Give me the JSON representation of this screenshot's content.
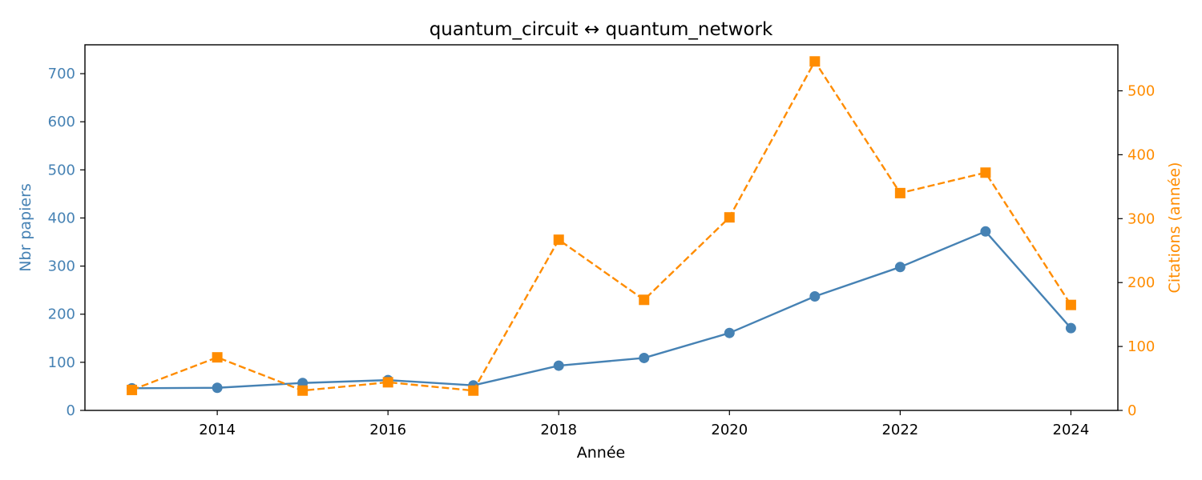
{
  "chart_data": {
    "type": "line",
    "title": "quantum_circuit  ↔  quantum_network",
    "xlabel": "Année",
    "ylabel_left": "Nbr papiers",
    "ylabel_right": "Citations (année)",
    "x": [
      2013,
      2014,
      2015,
      2016,
      2017,
      2018,
      2019,
      2020,
      2021,
      2022,
      2023,
      2024
    ],
    "xlim": [
      2012.45,
      2024.55
    ],
    "xticks": [
      2014,
      2016,
      2018,
      2020,
      2022,
      2024
    ],
    "ylim_left": [
      0,
      760
    ],
    "yticks_left": [
      0,
      100,
      200,
      300,
      400,
      500,
      600,
      700
    ],
    "ylim_right": [
      0,
      572
    ],
    "yticks_right": [
      0,
      100,
      200,
      300,
      400,
      500
    ],
    "grid": false,
    "legend": "none",
    "colors": {
      "left_axis": "#4682b4",
      "right_axis": "#ff8c00"
    },
    "series": [
      {
        "axis": "left",
        "color": "#4682b4",
        "line_style": "solid",
        "marker": "circle",
        "values": [
          46,
          47,
          57,
          63,
          52,
          93,
          109,
          161,
          237,
          298,
          372,
          171
        ]
      },
      {
        "axis": "right",
        "color": "#ff8c00",
        "line_style": "dashed",
        "marker": "square",
        "values": [
          32,
          83,
          31,
          44,
          31,
          267,
          173,
          302,
          546,
          340,
          372,
          165
        ]
      }
    ]
  }
}
